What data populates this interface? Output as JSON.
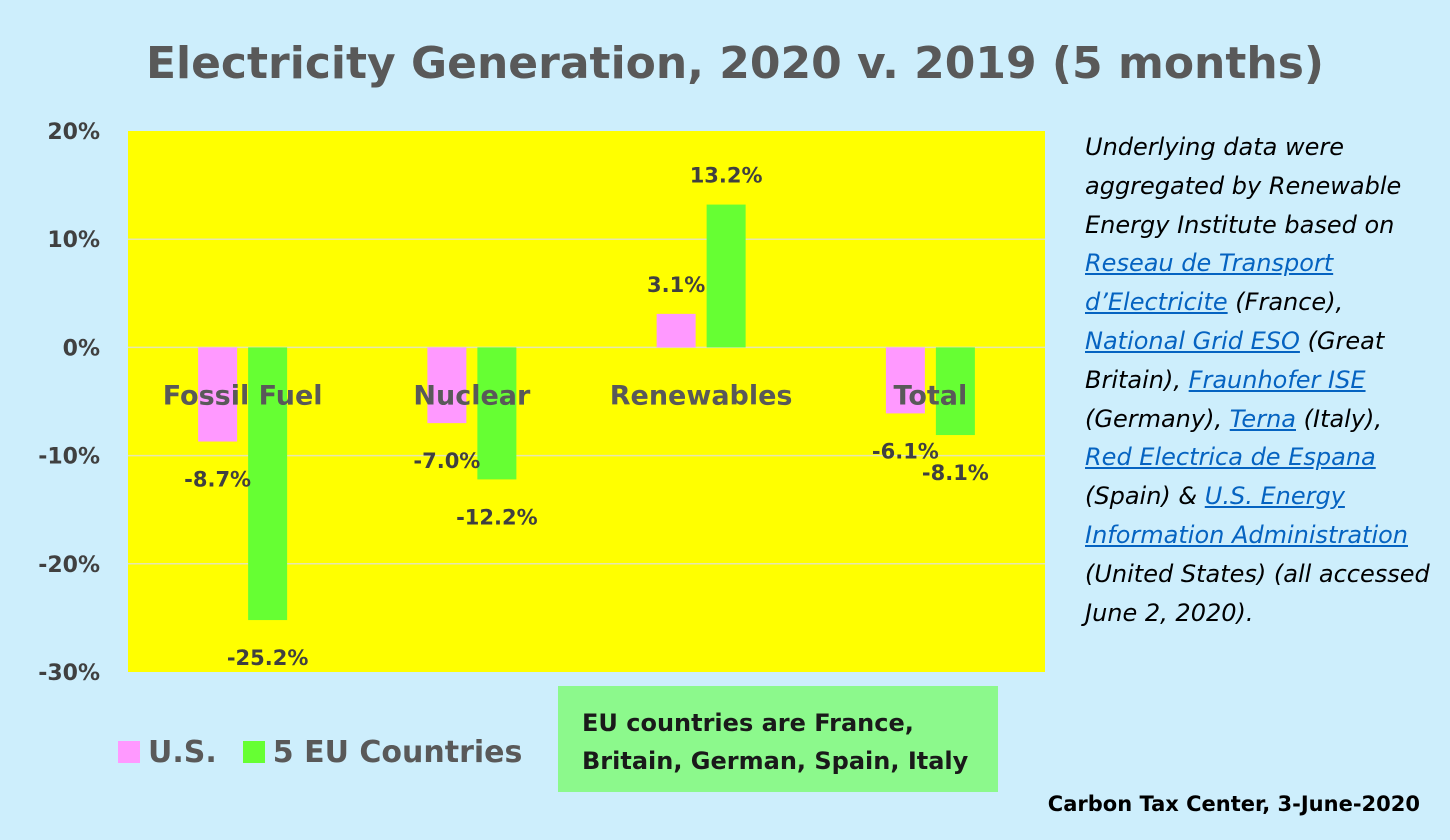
{
  "chart_data": {
    "type": "bar",
    "title": "Electricity Generation, 2020 v. 2019 (5 months)",
    "categories": [
      "Fossil Fuel",
      "Nuclear",
      "Renewables",
      "Total"
    ],
    "series": [
      {
        "name": "U.S.",
        "values": [
          -8.7,
          -7.0,
          3.1,
          -6.1
        ],
        "labels": [
          "-8.7%",
          "-7.0%",
          "3.1%",
          "-6.1%"
        ],
        "color": "#ff99ff"
      },
      {
        "name": "5 EU Countries",
        "values": [
          -25.2,
          -12.2,
          13.2,
          -8.1
        ],
        "labels": [
          "-25.2%",
          "-12.2%",
          "13.2%",
          "-8.1%"
        ],
        "color": "#66ff33"
      }
    ],
    "ylim": [
      -30,
      20
    ],
    "yticks": [
      20,
      10,
      0,
      -10,
      -20,
      -30
    ],
    "ytick_labels": [
      "20%",
      "10%",
      "0%",
      "-10%",
      "-20%",
      "-30%"
    ],
    "plot_background": "#ffff00",
    "grid": true,
    "legend_position": "bottom-left"
  },
  "eu_note": {
    "line1": "EU countries are France,",
    "line2": "Britain, German, Spain, Italy"
  },
  "source_note": {
    "intro": "Underlying data were aggregated by Renewable Energy Institute based on",
    "link_rte": "Reseau de Transport d’Electricite",
    "country_france": "(France),",
    "link_ngeso": "National Grid ESO",
    "country_gb": "(Great Britain),",
    "link_fraunhofer": "Fraunhofer ISE",
    "country_germany": "(Germany),",
    "link_terna": "Terna",
    "country_italy": "(Italy),",
    "link_ree": "Red Electrica de Espana",
    "country_spain": "(Spain) &",
    "link_eia": "U.S. Energy Information Administration",
    "country_us": "(United States) (all accessed June 2, 2020)."
  },
  "credit": "Carbon Tax Center, 3-June-2020"
}
